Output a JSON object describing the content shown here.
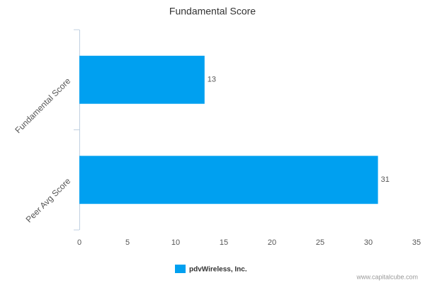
{
  "chart_data": {
    "type": "hbar",
    "title": "Fundamental Score",
    "categories": [
      "Fundamental Score",
      "Peer Avg Score"
    ],
    "series": [
      {
        "name": "pdvWireless, Inc.",
        "color": "#00a0f0",
        "values": [
          13,
          31
        ]
      }
    ],
    "xlim": [
      0,
      35
    ],
    "xticks": [
      0,
      5,
      10,
      15,
      20,
      25,
      30,
      35
    ],
    "grid": false,
    "legend": "bottom",
    "credit": "www.capitalcube.com"
  }
}
